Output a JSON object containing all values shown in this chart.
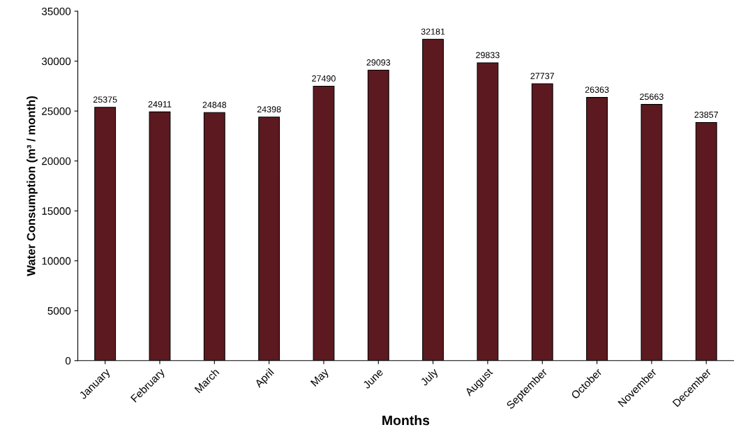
{
  "chart_data": {
    "type": "bar",
    "xlabel": "Months",
    "ylabel": "Water Consumption (m³ / month)",
    "categories": [
      "January",
      "February",
      "March",
      "April",
      "May",
      "June",
      "July",
      "August",
      "September",
      "October",
      "November",
      "December"
    ],
    "values": [
      25375,
      24911,
      24848,
      24398,
      27490,
      29093,
      32181,
      29833,
      27737,
      26363,
      25663,
      23857
    ],
    "color": "#5c1a20",
    "ylim": [
      0,
      35000
    ],
    "yticks": [
      0,
      5000,
      10000,
      15000,
      20000,
      25000,
      30000,
      35000
    ],
    "grid": false,
    "data_labels": true,
    "legend": false
  }
}
